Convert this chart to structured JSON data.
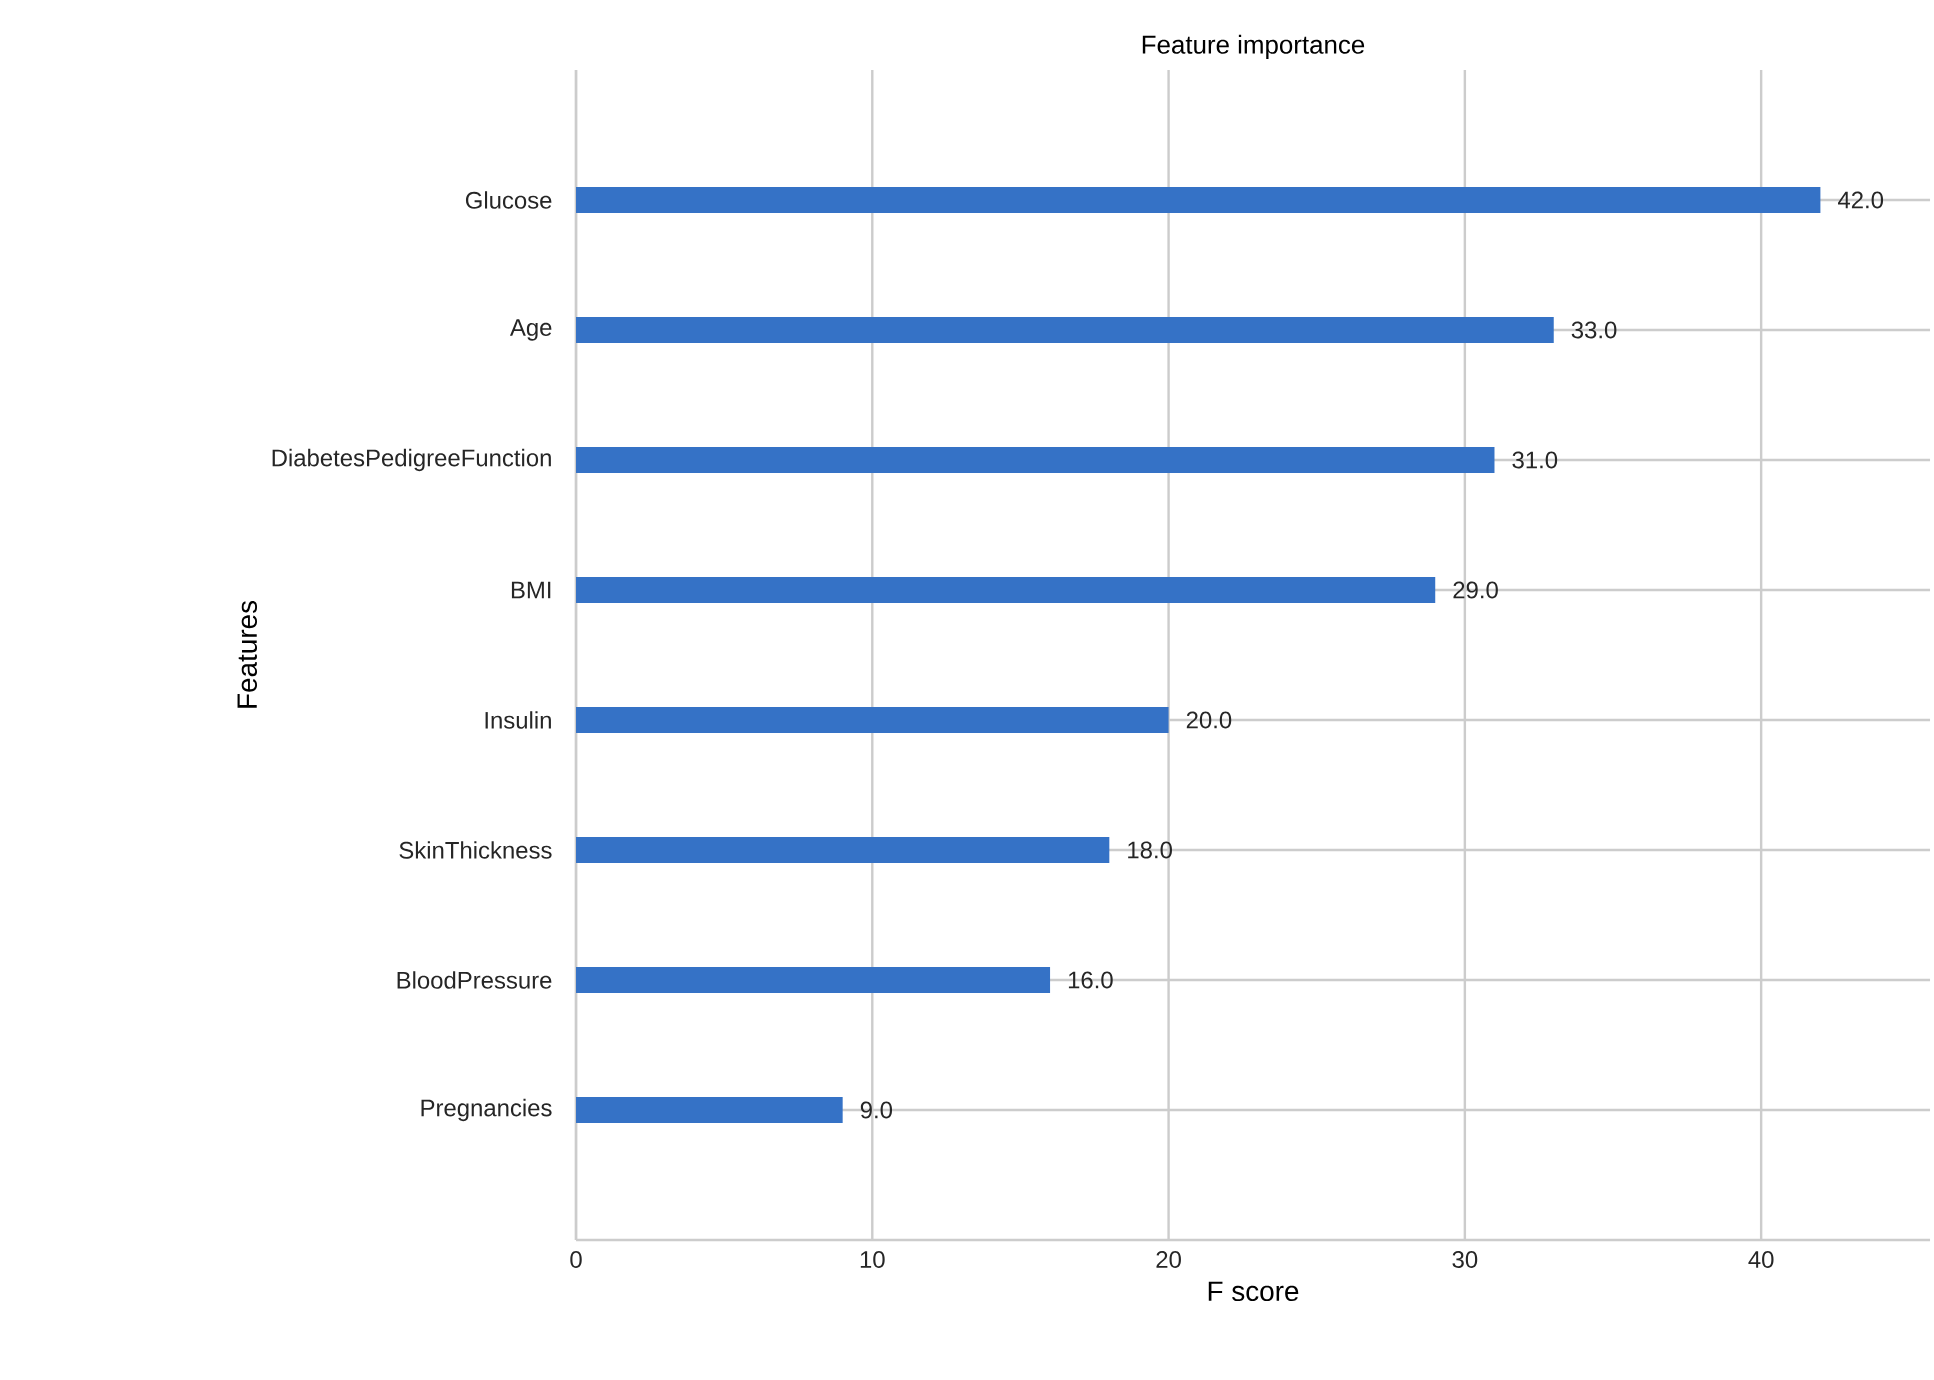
{
  "chart_data": {
    "type": "bar",
    "orientation": "horizontal",
    "title": "Feature importance",
    "xlabel": "F score",
    "ylabel": "Features",
    "categories": [
      "Glucose",
      "Age",
      "DiabetesPedigreeFunction",
      "BMI",
      "Insulin",
      "SkinThickness",
      "BloodPressure",
      "Pregnancies"
    ],
    "values": [
      42,
      33,
      31,
      29,
      20,
      18,
      16,
      9
    ],
    "value_labels": [
      "42.0",
      "33.0",
      "31.0",
      "29.0",
      "20.0",
      "18.0",
      "16.0",
      "9.0"
    ],
    "color": "#3572c6",
    "xlim": [
      0,
      45.7
    ],
    "xticks": [
      0,
      10,
      20,
      30,
      40
    ],
    "grid": true
  }
}
